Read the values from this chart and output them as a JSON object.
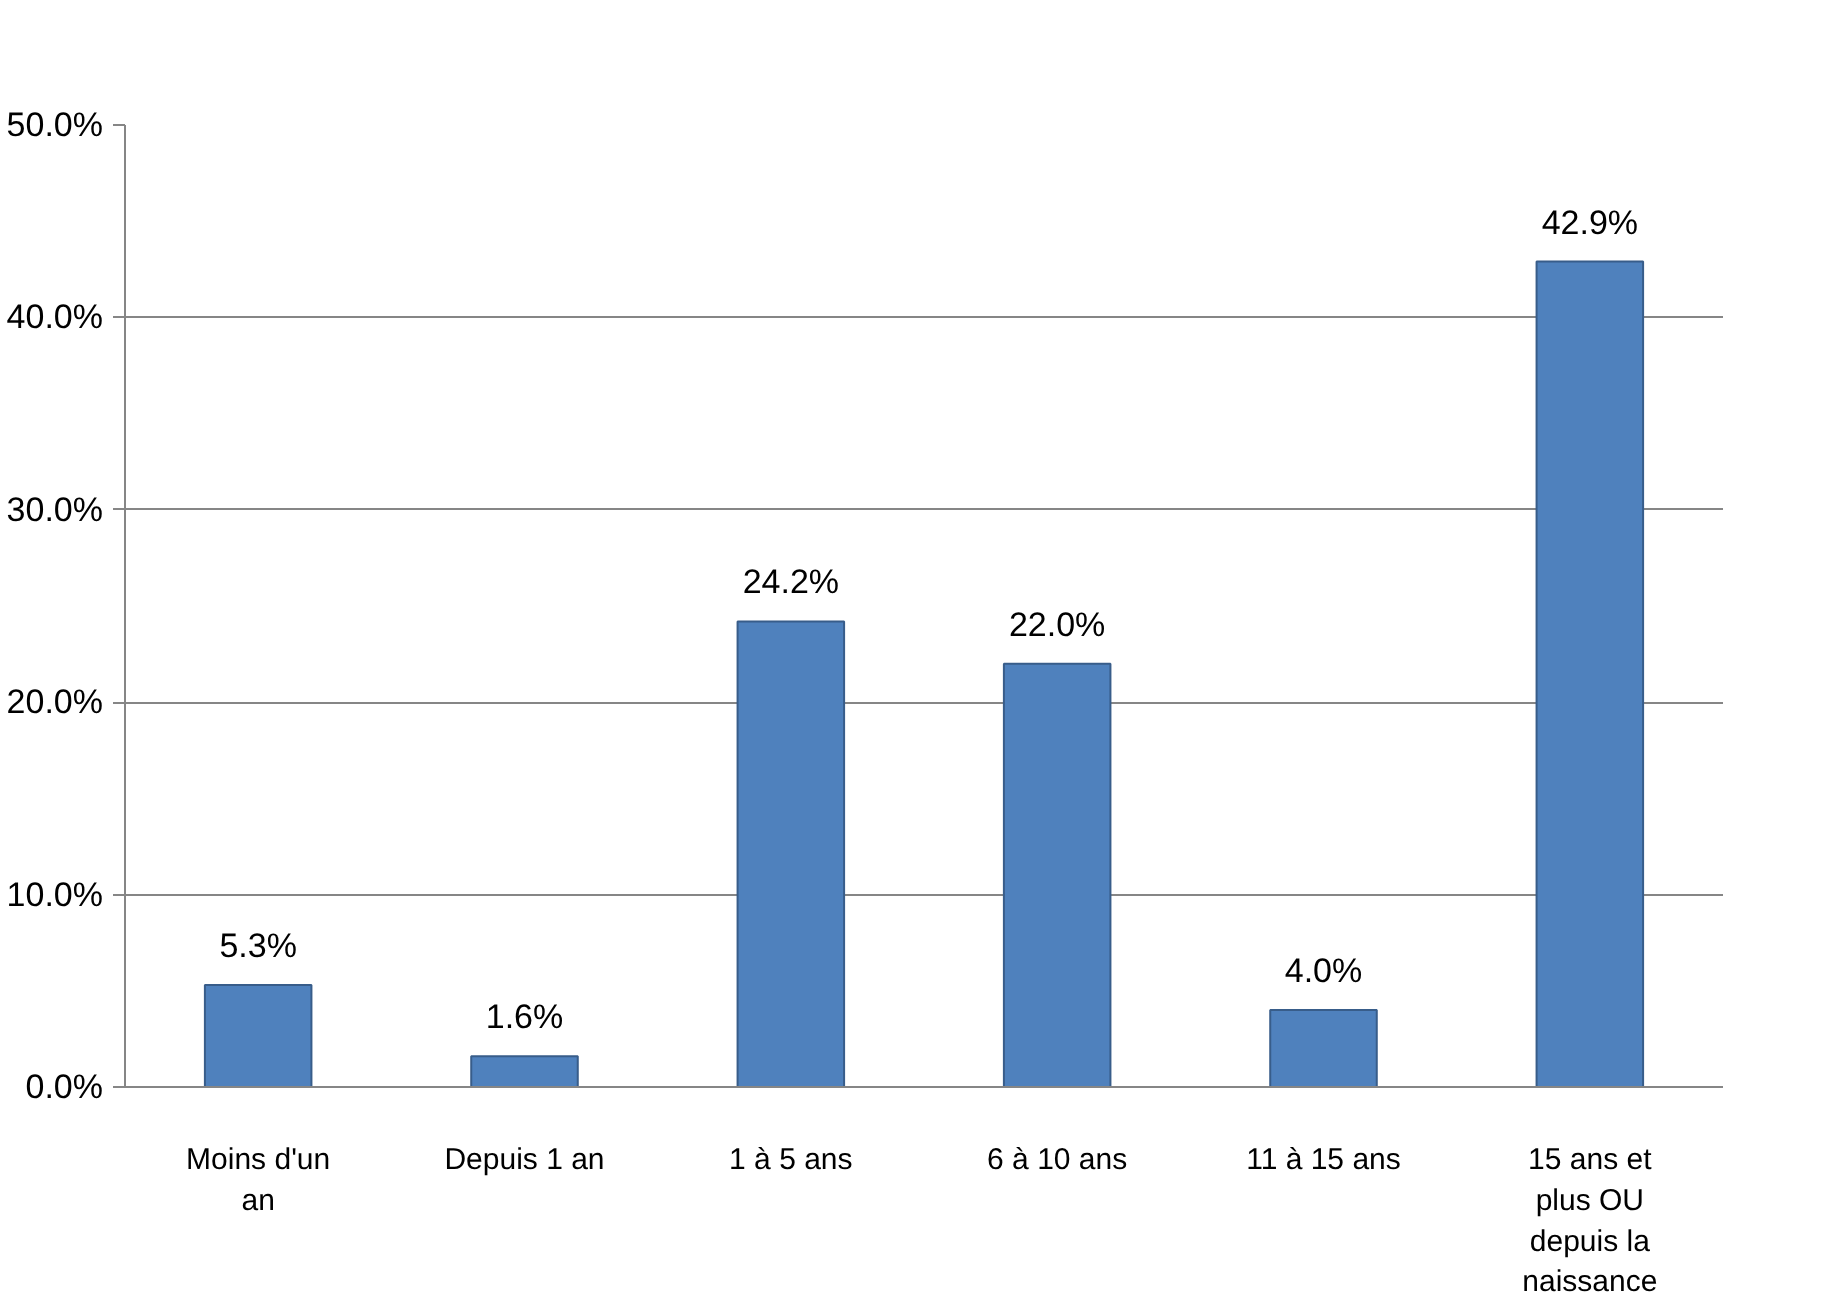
{
  "chart_data": {
    "type": "bar",
    "categories": [
      "Moins d'un an",
      "Depuis 1 an",
      "1 à 5 ans",
      "6 à 10 ans",
      "11 à 15 ans",
      "15 ans et plus OU depuis la naissance"
    ],
    "values": [
      5.3,
      1.6,
      24.2,
      22.0,
      4.0,
      42.9
    ],
    "color": "#4f81bd",
    "value_labels": [
      "5.3%",
      "1.6%",
      "24.2%",
      "22.0%",
      "4.0%",
      "42.9%"
    ],
    "ylim": [
      0,
      50
    ],
    "yticks": [
      {
        "value": 0,
        "label": "0.0%"
      },
      {
        "value": 10,
        "label": "10.0%"
      },
      {
        "value": 20,
        "label": "20.0%"
      },
      {
        "value": 30,
        "label": "30.0%"
      },
      {
        "value": 40,
        "label": "40.0%"
      },
      {
        "value": 50,
        "label": "50.0%"
      }
    ],
    "grid": "y"
  }
}
